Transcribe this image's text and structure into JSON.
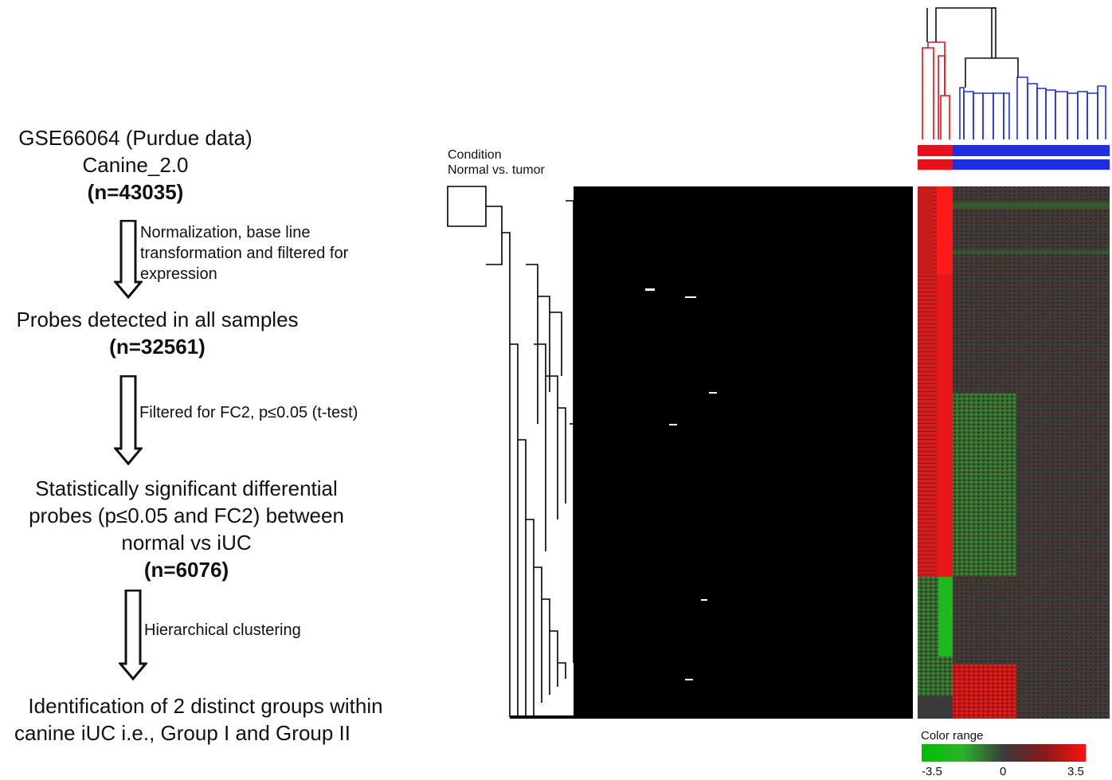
{
  "flowchart": {
    "step1": {
      "lines": [
        "GSE66064 (Purdue data)",
        "Canine_2.0"
      ],
      "n": "(n=43035)"
    },
    "arrow1": {
      "lines": [
        "Normalization, base line",
        "transformation and filtered for",
        "expression"
      ]
    },
    "step2": {
      "lines": [
        "Probes detected in all samples"
      ],
      "n": "(n=32561)"
    },
    "arrow2": {
      "lines": [
        "Filtered for FC2, p≤0.05 (t-test)"
      ]
    },
    "step3": {
      "lines": [
        "Statistically significant  differential",
        "probes (p≤0.05 and FC2) between",
        "normal vs iUC"
      ],
      "n": "(n=6076)"
    },
    "arrow3": {
      "lines": [
        "Hierarchical clustering"
      ]
    },
    "step4": {
      "lines": [
        "Identification of 2 distinct groups within",
        "canine iUC i.e., Group I and Group II"
      ]
    }
  },
  "heatmap": {
    "condition_label": [
      "Condition",
      "Normal vs. tumor"
    ],
    "colorbar": {
      "title": "Color range",
      "min": "-3.5",
      "mid": "0",
      "max": "3.5"
    },
    "colors": {
      "normal": "#e8101a",
      "tumor": "#1f2fe0",
      "high": "#ff1010",
      "low": "#00c000",
      "zero": "#3a3a3a"
    }
  }
}
